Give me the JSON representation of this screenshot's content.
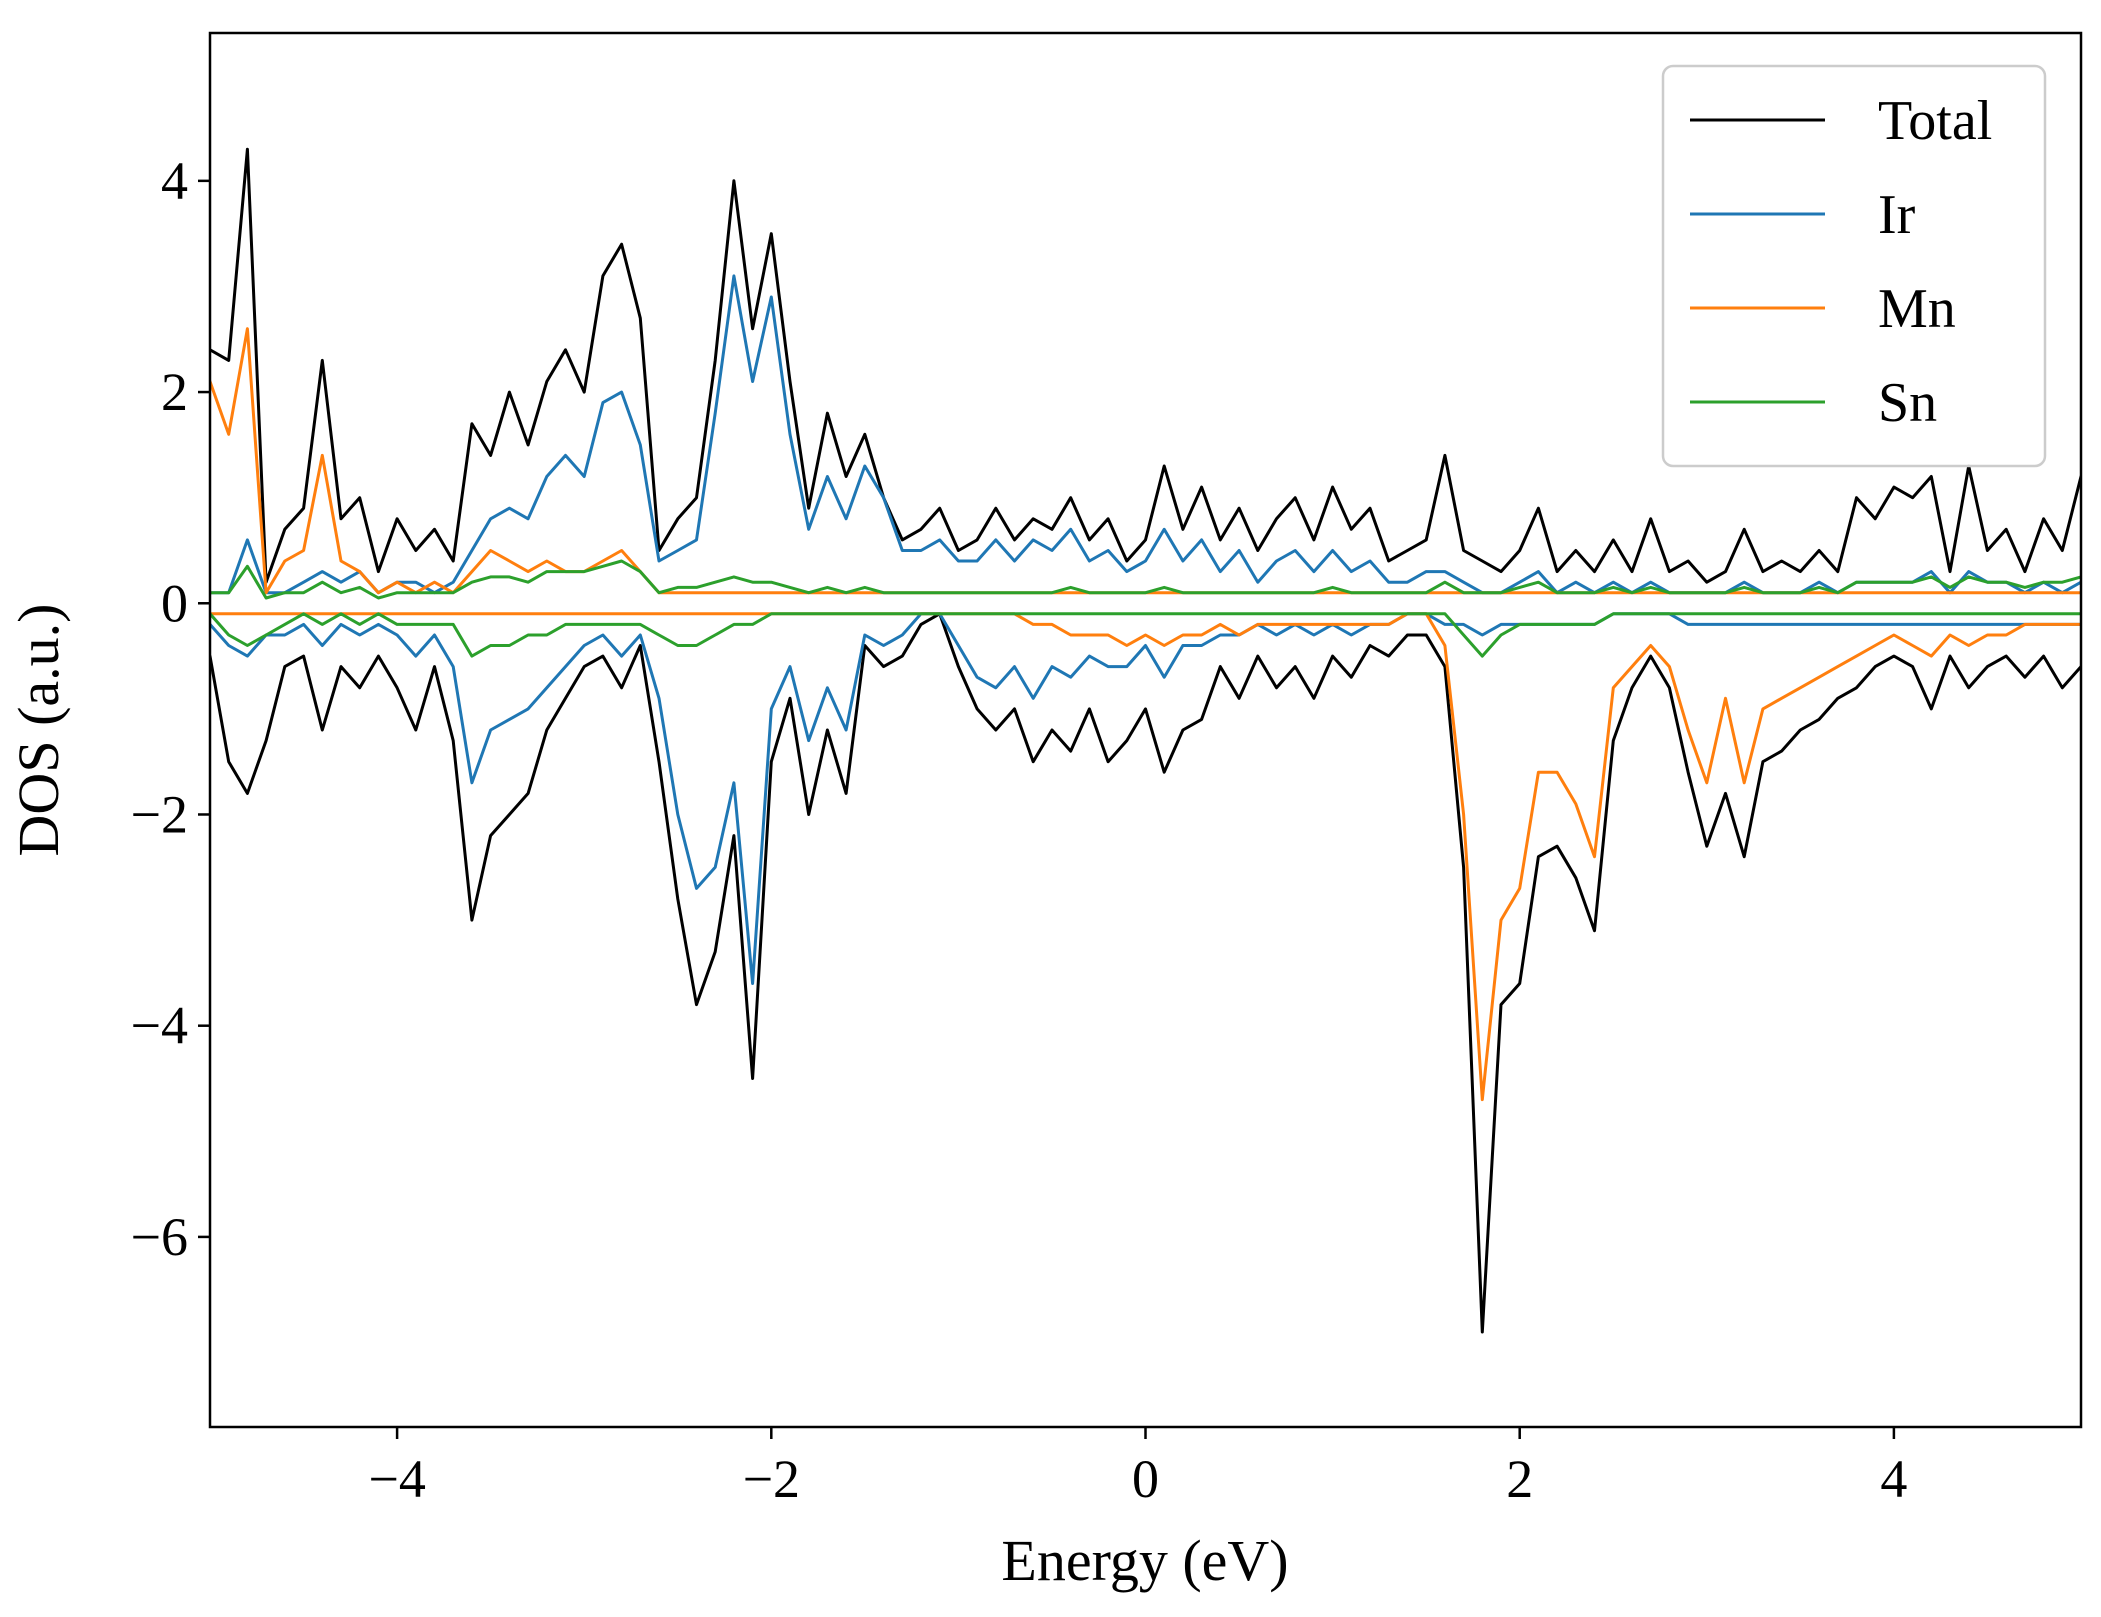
{
  "chart_data": {
    "type": "line",
    "title": "",
    "xlabel": "Energy (eV)",
    "ylabel": "DOS (a.u.)",
    "xlim": [
      -5,
      5
    ],
    "ylim": [
      -7.8,
      5.4
    ],
    "xticks": [
      -4,
      -2,
      0,
      2,
      4
    ],
    "yticks": [
      -6,
      -4,
      -2,
      0,
      2,
      4
    ],
    "xtick_labels": [
      "−4",
      "−2",
      "0",
      "2",
      "4"
    ],
    "ytick_labels": [
      "−6",
      "−4",
      "−2",
      "0",
      "2",
      "4"
    ],
    "grid": false,
    "legend_position": "top-right",
    "x": [
      -5.0,
      -4.9,
      -4.8,
      -4.7,
      -4.6,
      -4.5,
      -4.4,
      -4.3,
      -4.2,
      -4.1,
      -4.0,
      -3.9,
      -3.8,
      -3.7,
      -3.6,
      -3.5,
      -3.4,
      -3.3,
      -3.2,
      -3.1,
      -3.0,
      -2.9,
      -2.8,
      -2.7,
      -2.6,
      -2.5,
      -2.4,
      -2.3,
      -2.2,
      -2.1,
      -2.0,
      -1.9,
      -1.8,
      -1.7,
      -1.6,
      -1.5,
      -1.4,
      -1.3,
      -1.2,
      -1.1,
      -1.0,
      -0.9,
      -0.8,
      -0.7,
      -0.6,
      -0.5,
      -0.4,
      -0.3,
      -0.2,
      -0.1,
      0.0,
      0.1,
      0.2,
      0.3,
      0.4,
      0.5,
      0.6,
      0.7,
      0.8,
      0.9,
      1.0,
      1.1,
      1.2,
      1.3,
      1.4,
      1.5,
      1.6,
      1.7,
      1.8,
      1.9,
      2.0,
      2.1,
      2.2,
      2.3,
      2.4,
      2.5,
      2.6,
      2.7,
      2.8,
      2.9,
      3.0,
      3.1,
      3.2,
      3.3,
      3.4,
      3.5,
      3.6,
      3.7,
      3.8,
      3.9,
      4.0,
      4.1,
      4.2,
      4.3,
      4.4,
      4.5,
      4.6,
      4.7,
      4.8,
      4.9,
      5.0
    ],
    "series": [
      {
        "name": "Total",
        "color": "#000000",
        "up": [
          2.4,
          2.3,
          4.3,
          0.2,
          0.7,
          0.9,
          2.3,
          0.8,
          1.0,
          0.3,
          0.8,
          0.5,
          0.7,
          0.4,
          1.7,
          1.4,
          2.0,
          1.5,
          2.1,
          2.4,
          2.0,
          3.1,
          3.4,
          2.7,
          0.5,
          0.8,
          1.0,
          2.3,
          4.0,
          2.6,
          3.5,
          2.1,
          0.9,
          1.8,
          1.2,
          1.6,
          1.0,
          0.6,
          0.7,
          0.9,
          0.5,
          0.6,
          0.9,
          0.6,
          0.8,
          0.7,
          1.0,
          0.6,
          0.8,
          0.4,
          0.6,
          1.3,
          0.7,
          1.1,
          0.6,
          0.9,
          0.5,
          0.8,
          1.0,
          0.6,
          1.1,
          0.7,
          0.9,
          0.4,
          0.5,
          0.6,
          1.4,
          0.5,
          0.4,
          0.3,
          0.5,
          0.9,
          0.3,
          0.5,
          0.3,
          0.6,
          0.3,
          0.8,
          0.3,
          0.4,
          0.2,
          0.3,
          0.7,
          0.3,
          0.4,
          0.3,
          0.5,
          0.3,
          1.0,
          0.8,
          1.1,
          1.0,
          1.2,
          0.3,
          1.3,
          0.5,
          0.7,
          0.3,
          0.8,
          0.5,
          1.2
        ],
        "down": [
          -0.5,
          -1.5,
          -1.8,
          -1.3,
          -0.6,
          -0.5,
          -1.2,
          -0.6,
          -0.8,
          -0.5,
          -0.8,
          -1.2,
          -0.6,
          -1.3,
          -3.0,
          -2.2,
          -2.0,
          -1.8,
          -1.2,
          -0.9,
          -0.6,
          -0.5,
          -0.8,
          -0.4,
          -1.5,
          -2.8,
          -3.8,
          -3.3,
          -2.2,
          -4.5,
          -1.5,
          -0.9,
          -2.0,
          -1.2,
          -1.8,
          -0.4,
          -0.6,
          -0.5,
          -0.2,
          -0.1,
          -0.6,
          -1.0,
          -1.2,
          -1.0,
          -1.5,
          -1.2,
          -1.4,
          -1.0,
          -1.5,
          -1.3,
          -1.0,
          -1.6,
          -1.2,
          -1.1,
          -0.6,
          -0.9,
          -0.5,
          -0.8,
          -0.6,
          -0.9,
          -0.5,
          -0.7,
          -0.4,
          -0.5,
          -0.3,
          -0.3,
          -0.6,
          -2.5,
          -6.9,
          -3.8,
          -3.6,
          -2.4,
          -2.3,
          -2.6,
          -3.1,
          -1.3,
          -0.8,
          -0.5,
          -0.8,
          -1.6,
          -2.3,
          -1.8,
          -2.4,
          -1.5,
          -1.4,
          -1.2,
          -1.1,
          -0.9,
          -0.8,
          -0.6,
          -0.5,
          -0.6,
          -1.0,
          -0.5,
          -0.8,
          -0.6,
          -0.5,
          -0.7,
          -0.5,
          -0.8,
          -0.6
        ]
      },
      {
        "name": "Ir",
        "color": "#1f77b4",
        "up": [
          0.1,
          0.1,
          0.6,
          0.1,
          0.1,
          0.2,
          0.3,
          0.2,
          0.3,
          0.1,
          0.2,
          0.2,
          0.1,
          0.2,
          0.5,
          0.8,
          0.9,
          0.8,
          1.2,
          1.4,
          1.2,
          1.9,
          2.0,
          1.5,
          0.4,
          0.5,
          0.6,
          1.8,
          3.1,
          2.1,
          2.9,
          1.6,
          0.7,
          1.2,
          0.8,
          1.3,
          1.0,
          0.5,
          0.5,
          0.6,
          0.4,
          0.4,
          0.6,
          0.4,
          0.6,
          0.5,
          0.7,
          0.4,
          0.5,
          0.3,
          0.4,
          0.7,
          0.4,
          0.6,
          0.3,
          0.5,
          0.2,
          0.4,
          0.5,
          0.3,
          0.5,
          0.3,
          0.4,
          0.2,
          0.2,
          0.3,
          0.3,
          0.2,
          0.1,
          0.1,
          0.2,
          0.3,
          0.1,
          0.2,
          0.1,
          0.2,
          0.1,
          0.2,
          0.1,
          0.1,
          0.1,
          0.1,
          0.2,
          0.1,
          0.1,
          0.1,
          0.2,
          0.1,
          0.2,
          0.2,
          0.2,
          0.2,
          0.3,
          0.1,
          0.3,
          0.2,
          0.2,
          0.1,
          0.2,
          0.1,
          0.2
        ],
        "down": [
          -0.2,
          -0.4,
          -0.5,
          -0.3,
          -0.3,
          -0.2,
          -0.4,
          -0.2,
          -0.3,
          -0.2,
          -0.3,
          -0.5,
          -0.3,
          -0.6,
          -1.7,
          -1.2,
          -1.1,
          -1.0,
          -0.8,
          -0.6,
          -0.4,
          -0.3,
          -0.5,
          -0.3,
          -0.9,
          -2.0,
          -2.7,
          -2.5,
          -1.7,
          -3.6,
          -1.0,
          -0.6,
          -1.3,
          -0.8,
          -1.2,
          -0.3,
          -0.4,
          -0.3,
          -0.1,
          -0.1,
          -0.4,
          -0.7,
          -0.8,
          -0.6,
          -0.9,
          -0.6,
          -0.7,
          -0.5,
          -0.6,
          -0.6,
          -0.4,
          -0.7,
          -0.4,
          -0.4,
          -0.3,
          -0.3,
          -0.2,
          -0.3,
          -0.2,
          -0.3,
          -0.2,
          -0.3,
          -0.2,
          -0.2,
          -0.1,
          -0.1,
          -0.2,
          -0.2,
          -0.3,
          -0.2,
          -0.2,
          -0.2,
          -0.2,
          -0.2,
          -0.2,
          -0.1,
          -0.1,
          -0.1,
          -0.1,
          -0.2,
          -0.2,
          -0.2,
          -0.2,
          -0.2,
          -0.2,
          -0.2,
          -0.2,
          -0.2,
          -0.2,
          -0.2,
          -0.2,
          -0.2,
          -0.2,
          -0.2,
          -0.2,
          -0.2,
          -0.2,
          -0.2,
          -0.2,
          -0.2,
          -0.2
        ]
      },
      {
        "name": "Mn",
        "color": "#ff7f0e",
        "up": [
          2.1,
          1.6,
          2.6,
          0.1,
          0.4,
          0.5,
          1.4,
          0.4,
          0.3,
          0.1,
          0.2,
          0.1,
          0.2,
          0.1,
          0.3,
          0.5,
          0.4,
          0.3,
          0.4,
          0.3,
          0.3,
          0.4,
          0.5,
          0.3,
          0.1,
          0.1,
          0.1,
          0.1,
          0.1,
          0.1,
          0.1,
          0.1,
          0.1,
          0.1,
          0.1,
          0.1,
          0.1,
          0.1,
          0.1,
          0.1,
          0.1,
          0.1,
          0.1,
          0.1,
          0.1,
          0.1,
          0.1,
          0.1,
          0.1,
          0.1,
          0.1,
          0.1,
          0.1,
          0.1,
          0.1,
          0.1,
          0.1,
          0.1,
          0.1,
          0.1,
          0.1,
          0.1,
          0.1,
          0.1,
          0.1,
          0.1,
          0.1,
          0.1,
          0.1,
          0.1,
          0.1,
          0.1,
          0.1,
          0.1,
          0.1,
          0.1,
          0.1,
          0.1,
          0.1,
          0.1,
          0.1,
          0.1,
          0.1,
          0.1,
          0.1,
          0.1,
          0.1,
          0.1,
          0.1,
          0.1,
          0.1,
          0.1,
          0.1,
          0.1,
          0.1,
          0.1,
          0.1,
          0.1,
          0.1,
          0.1,
          0.1
        ],
        "down": [
          -0.1,
          -0.1,
          -0.1,
          -0.1,
          -0.1,
          -0.1,
          -0.1,
          -0.1,
          -0.1,
          -0.1,
          -0.1,
          -0.1,
          -0.1,
          -0.1,
          -0.1,
          -0.1,
          -0.1,
          -0.1,
          -0.1,
          -0.1,
          -0.1,
          -0.1,
          -0.1,
          -0.1,
          -0.1,
          -0.1,
          -0.1,
          -0.1,
          -0.1,
          -0.1,
          -0.1,
          -0.1,
          -0.1,
          -0.1,
          -0.1,
          -0.1,
          -0.1,
          -0.1,
          -0.1,
          -0.1,
          -0.1,
          -0.1,
          -0.1,
          -0.1,
          -0.2,
          -0.2,
          -0.3,
          -0.3,
          -0.3,
          -0.4,
          -0.3,
          -0.4,
          -0.3,
          -0.3,
          -0.2,
          -0.3,
          -0.2,
          -0.2,
          -0.2,
          -0.2,
          -0.2,
          -0.2,
          -0.2,
          -0.2,
          -0.1,
          -0.1,
          -0.4,
          -2.0,
          -4.7,
          -3.0,
          -2.7,
          -1.6,
          -1.6,
          -1.9,
          -2.4,
          -0.8,
          -0.6,
          -0.4,
          -0.6,
          -1.2,
          -1.7,
          -0.9,
          -1.7,
          -1.0,
          -0.9,
          -0.8,
          -0.7,
          -0.6,
          -0.5,
          -0.4,
          -0.3,
          -0.4,
          -0.5,
          -0.3,
          -0.4,
          -0.3,
          -0.3,
          -0.2,
          -0.2,
          -0.2,
          -0.2
        ]
      },
      {
        "name": "Sn",
        "color": "#2ca02c",
        "up": [
          0.1,
          0.1,
          0.35,
          0.05,
          0.1,
          0.1,
          0.2,
          0.1,
          0.15,
          0.05,
          0.1,
          0.1,
          0.1,
          0.1,
          0.2,
          0.25,
          0.25,
          0.2,
          0.3,
          0.3,
          0.3,
          0.35,
          0.4,
          0.3,
          0.1,
          0.15,
          0.15,
          0.2,
          0.25,
          0.2,
          0.2,
          0.15,
          0.1,
          0.15,
          0.1,
          0.15,
          0.1,
          0.1,
          0.1,
          0.1,
          0.1,
          0.1,
          0.1,
          0.1,
          0.1,
          0.1,
          0.15,
          0.1,
          0.1,
          0.1,
          0.1,
          0.15,
          0.1,
          0.1,
          0.1,
          0.1,
          0.1,
          0.1,
          0.1,
          0.1,
          0.15,
          0.1,
          0.1,
          0.1,
          0.1,
          0.1,
          0.2,
          0.1,
          0.1,
          0.1,
          0.15,
          0.2,
          0.1,
          0.1,
          0.1,
          0.15,
          0.1,
          0.15,
          0.1,
          0.1,
          0.1,
          0.1,
          0.15,
          0.1,
          0.1,
          0.1,
          0.15,
          0.1,
          0.2,
          0.2,
          0.2,
          0.2,
          0.25,
          0.15,
          0.25,
          0.2,
          0.2,
          0.15,
          0.2,
          0.2,
          0.25
        ],
        "down": [
          -0.1,
          -0.3,
          -0.4,
          -0.3,
          -0.2,
          -0.1,
          -0.2,
          -0.1,
          -0.2,
          -0.1,
          -0.2,
          -0.2,
          -0.2,
          -0.2,
          -0.5,
          -0.4,
          -0.4,
          -0.3,
          -0.3,
          -0.2,
          -0.2,
          -0.2,
          -0.2,
          -0.2,
          -0.3,
          -0.4,
          -0.4,
          -0.3,
          -0.2,
          -0.2,
          -0.1,
          -0.1,
          -0.1,
          -0.1,
          -0.1,
          -0.1,
          -0.1,
          -0.1,
          -0.1,
          -0.1,
          -0.1,
          -0.1,
          -0.1,
          -0.1,
          -0.1,
          -0.1,
          -0.1,
          -0.1,
          -0.1,
          -0.1,
          -0.1,
          -0.1,
          -0.1,
          -0.1,
          -0.1,
          -0.1,
          -0.1,
          -0.1,
          -0.1,
          -0.1,
          -0.1,
          -0.1,
          -0.1,
          -0.1,
          -0.1,
          -0.1,
          -0.1,
          -0.3,
          -0.5,
          -0.3,
          -0.2,
          -0.2,
          -0.2,
          -0.2,
          -0.2,
          -0.1,
          -0.1,
          -0.1,
          -0.1,
          -0.1,
          -0.1,
          -0.1,
          -0.1,
          -0.1,
          -0.1,
          -0.1,
          -0.1,
          -0.1,
          -0.1,
          -0.1,
          -0.1,
          -0.1,
          -0.1,
          -0.1,
          -0.1,
          -0.1,
          -0.1,
          -0.1,
          -0.1,
          -0.1,
          -0.1
        ]
      }
    ]
  }
}
